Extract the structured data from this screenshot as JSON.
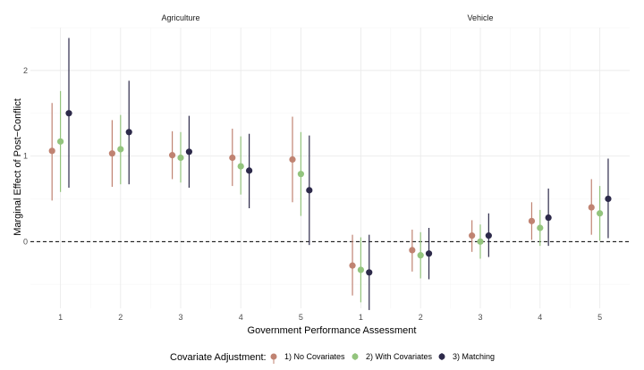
{
  "chart_data": {
    "type": "scatter",
    "subtype": "point-range (estimate with interval), faceted",
    "xlabel": "Government Performance Assessment",
    "ylabel": "Marginal Effect of Post−Conflict",
    "ylim": [
      -0.78,
      2.5
    ],
    "y_ticks": [
      "0",
      "1",
      "2"
    ],
    "y_tick_values": [
      0,
      1,
      2
    ],
    "x_ticks": [
      "1",
      "2",
      "3",
      "4",
      "5"
    ],
    "reference_line": {
      "y": 0,
      "style": "dashed",
      "color": "#000000"
    },
    "grid": true,
    "legend_position": "bottom",
    "legend_title": "Covariate Adjustment:",
    "series": [
      {
        "name": "1) No Covariates",
        "color": "#c08372"
      },
      {
        "name": "2) With Covariates",
        "color": "#93c47d"
      },
      {
        "name": "3) Matching",
        "color": "#2d2a4a"
      }
    ],
    "panels": [
      {
        "title": "Agriculture",
        "x": [
          1,
          2,
          3,
          4,
          5
        ],
        "estimates": [
          [
            1.06,
            1.03,
            1.01,
            0.98,
            0.96
          ],
          [
            1.17,
            1.08,
            0.98,
            0.88,
            0.79
          ],
          [
            1.5,
            1.28,
            1.05,
            0.83,
            0.6
          ]
        ],
        "lower": [
          [
            0.48,
            0.64,
            0.73,
            0.65,
            0.46
          ],
          [
            0.58,
            0.67,
            0.69,
            0.55,
            0.3
          ],
          [
            0.63,
            0.67,
            0.63,
            0.39,
            -0.04
          ]
        ],
        "upper": [
          [
            1.62,
            1.42,
            1.29,
            1.32,
            1.46
          ],
          [
            1.76,
            1.48,
            1.28,
            1.23,
            1.28
          ],
          [
            2.38,
            1.88,
            1.47,
            1.26,
            1.24
          ]
        ]
      },
      {
        "title": "Vehicle",
        "x": [
          1,
          2,
          3,
          4,
          5
        ],
        "estimates": [
          [
            -0.28,
            -0.1,
            0.07,
            0.24,
            0.4
          ],
          [
            -0.33,
            -0.16,
            0.0,
            0.16,
            0.33
          ],
          [
            -0.36,
            -0.14,
            0.07,
            0.28,
            0.5
          ]
        ],
        "lower": [
          [
            -0.63,
            -0.35,
            -0.12,
            0.02,
            0.08
          ],
          [
            -0.71,
            -0.43,
            -0.2,
            -0.05,
            0.01
          ],
          [
            -0.8,
            -0.44,
            -0.18,
            -0.05,
            0.04
          ]
        ],
        "upper": [
          [
            0.08,
            0.14,
            0.25,
            0.46,
            0.73
          ],
          [
            0.05,
            0.11,
            0.2,
            0.37,
            0.65
          ],
          [
            0.08,
            0.16,
            0.33,
            0.62,
            0.97
          ]
        ]
      }
    ]
  }
}
